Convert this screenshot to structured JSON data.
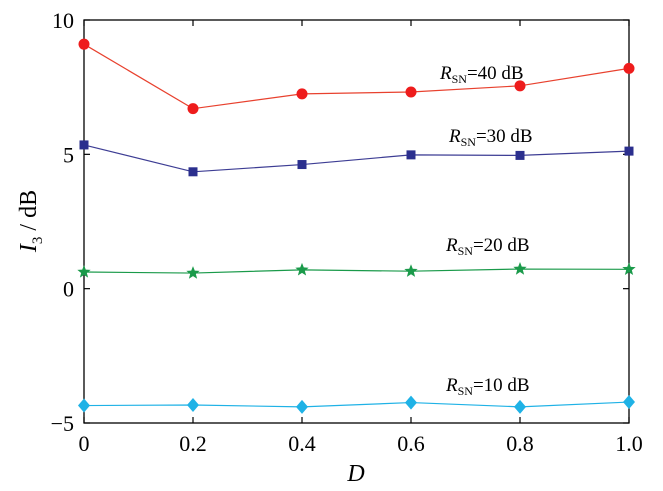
{
  "chart_data": {
    "type": "line",
    "xlabel": "D",
    "ylabel": {
      "base": "I",
      "sub": "3",
      "unit": " / dB"
    },
    "xlim": [
      0,
      1.0
    ],
    "ylim": [
      -5,
      10
    ],
    "xticks": [
      {
        "value": 0,
        "label": "0"
      },
      {
        "value": 0.2,
        "label": "0.2"
      },
      {
        "value": 0.4,
        "label": "0.4"
      },
      {
        "value": 0.6,
        "label": "0.6"
      },
      {
        "value": 0.8,
        "label": "0.8"
      },
      {
        "value": 1.0,
        "label": "1.0"
      }
    ],
    "yticks": [
      {
        "value": -5,
        "label": "−5"
      },
      {
        "value": 0,
        "label": "0"
      },
      {
        "value": 5,
        "label": "5"
      },
      {
        "value": 10,
        "label": "10"
      }
    ],
    "grid": false,
    "legend": "inline labels",
    "x": [
      0,
      0.2,
      0.4,
      0.6,
      0.8,
      1.0
    ],
    "series": [
      {
        "name": "40 dB",
        "label": {
          "base": "R",
          "sub": "SN",
          "rest": "=40 dB"
        },
        "marker": "circle",
        "line_color": "#e8412e",
        "marker_color": "#ee1c1c",
        "values": [
          9.1,
          6.7,
          7.25,
          7.32,
          7.55,
          8.2
        ]
      },
      {
        "name": "30 dB",
        "label": {
          "base": "R",
          "sub": "SN",
          "rest": "=30 dB"
        },
        "marker": "square",
        "line_color": "#3d3d94",
        "marker_color": "#2b2f8e",
        "values": [
          5.35,
          4.35,
          4.62,
          4.98,
          4.96,
          5.12
        ]
      },
      {
        "name": "20 dB",
        "label": {
          "base": "R",
          "sub": "SN",
          "rest": "=20 dB"
        },
        "marker": "star",
        "line_color": "#1a9a4a",
        "marker_color": "#1a9a4a",
        "values": [
          0.62,
          0.58,
          0.7,
          0.65,
          0.73,
          0.72
        ]
      },
      {
        "name": "10 dB",
        "label": {
          "base": "R",
          "sub": "SN",
          "rest": "=10 dB"
        },
        "marker": "diamond",
        "line_color": "#1fb2e6",
        "marker_color": "#1fb2e6",
        "values": [
          -4.35,
          -4.33,
          -4.4,
          -4.24,
          -4.4,
          -4.22
        ]
      }
    ]
  }
}
